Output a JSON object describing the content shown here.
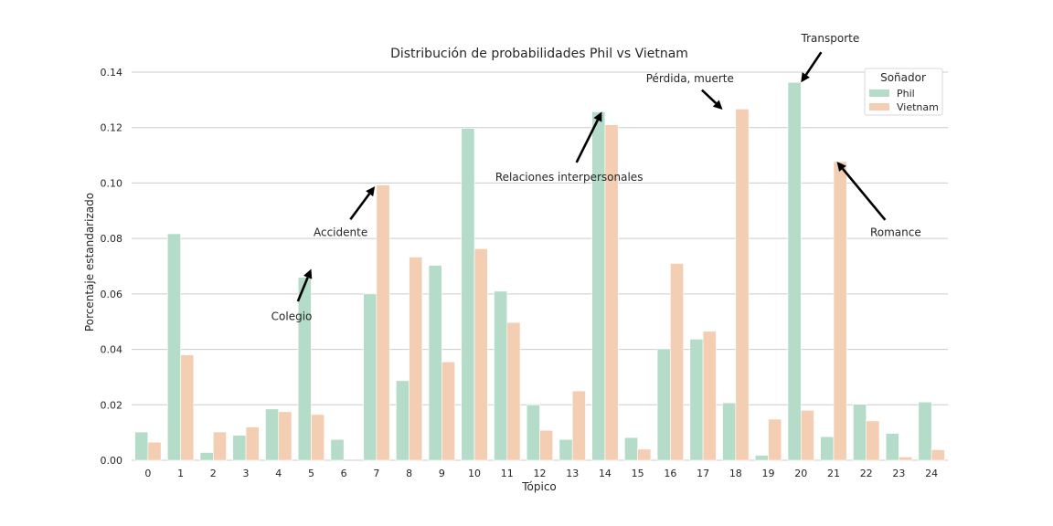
{
  "chart_data": {
    "type": "bar",
    "title": "Distribución de probabilidades Phil vs Vietnam",
    "xlabel": "Tópico",
    "ylabel": "Porcentaje estandarizado",
    "ylim": [
      0,
      0.14
    ],
    "yticks": [
      "0.00",
      "0.02",
      "0.04",
      "0.06",
      "0.08",
      "0.10",
      "0.12",
      "0.14"
    ],
    "grid": "horizontal",
    "categories": [
      "0",
      "1",
      "2",
      "3",
      "4",
      "5",
      "6",
      "7",
      "8",
      "9",
      "10",
      "11",
      "12",
      "13",
      "14",
      "15",
      "16",
      "17",
      "18",
      "19",
      "20",
      "21",
      "22",
      "23",
      "24"
    ],
    "series": [
      {
        "name": "Phil",
        "color": "#b5dcc9",
        "values": [
          0.0102,
          0.0817,
          0.0028,
          0.009,
          0.0185,
          0.066,
          0.0075,
          0.06,
          0.0287,
          0.0703,
          0.1197,
          0.061,
          0.02,
          0.0075,
          0.1257,
          0.0082,
          0.0402,
          0.0437,
          0.0207,
          0.0018,
          0.1363,
          0.0085,
          0.0202,
          0.0097,
          0.021
        ]
      },
      {
        "name": "Vietnam",
        "color": "#f4ceb2",
        "values": [
          0.0065,
          0.038,
          0.0102,
          0.012,
          0.0175,
          0.0165,
          0.0,
          0.0993,
          0.0733,
          0.0355,
          0.0763,
          0.0497,
          0.0108,
          0.025,
          0.121,
          0.004,
          0.071,
          0.0465,
          0.1267,
          0.0148,
          0.018,
          0.1077,
          0.0142,
          0.0012,
          0.0038
        ]
      }
    ],
    "legend": {
      "title": "Soñador",
      "placement": "top-right"
    },
    "annotations": [
      {
        "text": "Colegio",
        "text_x": 4.4,
        "text_y": 0.0505,
        "target_x": 5,
        "target_y": 0.069
      },
      {
        "text": "Accidente",
        "text_x": 5.9,
        "text_y": 0.0808,
        "target_x": 6.95,
        "target_y": 0.0988
      },
      {
        "text": "Relaciones interpersonales",
        "text_x": 12.9,
        "text_y": 0.1008,
        "target_x": 13.9,
        "target_y": 0.1257
      },
      {
        "text": "Pérdida, muerte",
        "text_x": 16.6,
        "text_y": 0.1363,
        "target_x": 17.6,
        "target_y": 0.1265
      },
      {
        "text": "Transporte",
        "text_x": 20.9,
        "text_y": 0.1508,
        "target_x": 20.0,
        "target_y": 0.1363
      },
      {
        "text": "Romance",
        "text_x": 22.9,
        "text_y": 0.0808,
        "target_x": 21.1,
        "target_y": 0.1077
      }
    ]
  }
}
